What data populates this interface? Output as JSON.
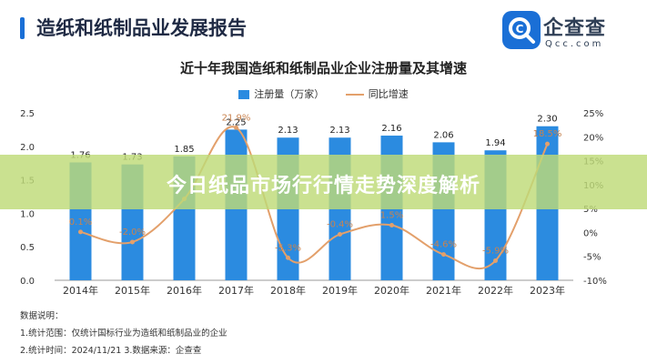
{
  "header": {
    "report_title": "造纸和纸制品业发展报告",
    "logo_name": "企查查",
    "logo_domain": "Qcc.com"
  },
  "banner": {
    "text": "今日纸品市场行行情走势深度解析"
  },
  "colors": {
    "bar": "#2b8be0",
    "line": "#e3a06b",
    "accent": "#1a6fd6",
    "banner": "#bedb78"
  },
  "chart_data": {
    "type": "bar",
    "title": "近十年我国造纸和纸制品业企业注册量及其增速",
    "categories": [
      "2014年",
      "2015年",
      "2016年",
      "2017年",
      "2018年",
      "2019年",
      "2020年",
      "2021年",
      "2022年",
      "2023年"
    ],
    "series": [
      {
        "name": "注册量（万家）",
        "type": "bar",
        "axis": "left",
        "values": [
          1.76,
          1.73,
          1.85,
          2.25,
          2.13,
          2.13,
          2.16,
          2.06,
          1.94,
          2.3
        ],
        "labels": [
          "1.76",
          "1.73",
          "1.85",
          "2.25",
          "2.13",
          "2.13",
          "2.16",
          "2.06",
          "1.94",
          "2.30"
        ]
      },
      {
        "name": "同比增速",
        "type": "line",
        "axis": "right",
        "values": [
          0.1,
          -2.0,
          7.0,
          21.9,
          -5.3,
          -0.4,
          1.5,
          -4.6,
          -5.9,
          18.5
        ],
        "labels": [
          "0.1%",
          "-2.0%",
          "",
          "21.9%",
          "-5.3%",
          "-0.4%",
          "1.5%",
          "-4.6%",
          "-5.9%",
          "18.5%"
        ]
      }
    ],
    "ylim_left": [
      0,
      2.5
    ],
    "yticks_left": [
      "0.0",
      "0.5",
      "1.0",
      "1.5",
      "2.0",
      "2.5"
    ],
    "ylim_right": [
      -10,
      25
    ],
    "yticks_right": [
      "-10%",
      "-5%",
      "0%",
      "5%",
      "10%",
      "15%",
      "20%",
      "25%"
    ],
    "legend": "top-center",
    "grid": false
  },
  "notes": {
    "heading": "数据说明：",
    "line1": "1.统计范围：仅统计国标行业为造纸和纸制品业的企业",
    "line2": "2.统计时间：2024/11/21    3.数据来源：企查查"
  }
}
